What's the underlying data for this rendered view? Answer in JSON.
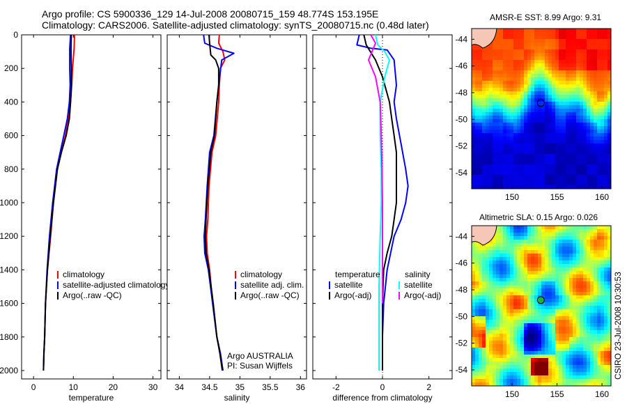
{
  "title": {
    "line1": "Argo profile: CS 5900336_129 14-Jul-2008 20080715_159 48.774S 153.195E",
    "line2": "Climatology: CARS2006. Satellite-adjusted climatology: synTS_20080715.nc (0.48d later)"
  },
  "credit": "CSIRO 23-Jul-2008 10:30:53",
  "colors": {
    "climatology": "#ff0000",
    "satellite": "#0000ff",
    "argo": "#000000",
    "sat_sal": "#00ffff",
    "argo_sal": "#ff00ff"
  },
  "chart_data": [
    {
      "type": "line",
      "xlabel": "temperature",
      "xticks": [
        "0",
        "10",
        "20",
        "30"
      ],
      "xlim": [
        -3,
        32
      ],
      "ylim": [
        2050,
        0
      ],
      "yticks": [
        "0",
        "200",
        "400",
        "600",
        "800",
        "1000",
        "1200",
        "1400",
        "1600",
        "1800",
        "2000"
      ],
      "legend": [
        "climatology",
        "satellite-adjusted climatology",
        "Argo(..raw -QC)"
      ],
      "series": [
        {
          "name": "climatology",
          "color": "#ff0000",
          "x": [
            10.3,
            10.2,
            9.8,
            9.6,
            9.3,
            8.8,
            8.0,
            7.0,
            6.0,
            5.0,
            4.3,
            3.5,
            3.0,
            2.8,
            2.6,
            2.5
          ],
          "y": [
            0,
            80,
            200,
            300,
            400,
            500,
            600,
            700,
            800,
            1000,
            1200,
            1400,
            1600,
            1800,
            1900,
            2000
          ]
        },
        {
          "name": "satellite-adjusted climatology",
          "color": "#0000ff",
          "x": [
            9.3,
            9.1,
            9.1,
            9.2,
            9.0,
            8.5,
            7.6,
            6.7,
            5.8,
            4.8,
            4.0,
            3.4,
            3.0,
            2.8,
            2.6,
            2.5
          ],
          "y": [
            0,
            80,
            200,
            300,
            400,
            500,
            600,
            700,
            800,
            1000,
            1200,
            1400,
            1600,
            1800,
            1900,
            2000
          ]
        },
        {
          "name": "Argo(..raw -QC)",
          "color": "#000000",
          "x": [
            9.5,
            9.4,
            9.5,
            9.5,
            9.3,
            9.0,
            8.2,
            7.0,
            6.0,
            5.0,
            4.2,
            3.5,
            3.0,
            2.8,
            2.6,
            2.5
          ],
          "y": [
            0,
            80,
            200,
            300,
            400,
            500,
            600,
            700,
            800,
            1000,
            1200,
            1400,
            1600,
            1800,
            1900,
            2000
          ]
        }
      ]
    },
    {
      "type": "line",
      "xlabel": "salinity",
      "xticks": [
        "34",
        "34.5",
        "35",
        "35.5",
        "36"
      ],
      "xlim": [
        33.8,
        36.1
      ],
      "ylim": [
        2050,
        0
      ],
      "legend": [
        "climatology",
        "satellite adj. clim.",
        "Argo(..raw -QC)"
      ],
      "annotation": [
        "Argo AUSTRALIA",
        "PI: Susan Wijffels"
      ],
      "series": [
        {
          "name": "climatology",
          "color": "#ff0000",
          "x": [
            34.66,
            34.65,
            34.72,
            34.75,
            34.68,
            34.66,
            34.65,
            34.6,
            34.54,
            34.49,
            34.47,
            34.45,
            34.46,
            34.5,
            34.55,
            34.62,
            34.68,
            34.72
          ],
          "y": [
            0,
            50,
            100,
            150,
            200,
            300,
            400,
            600,
            700,
            900,
            1100,
            1200,
            1300,
            1400,
            1600,
            1800,
            1900,
            2000
          ]
        },
        {
          "name": "satellite adj. clim.",
          "color": "#0000ff",
          "x": [
            34.4,
            34.42,
            34.62,
            34.9,
            34.7,
            34.65,
            34.62,
            34.57,
            34.5,
            34.46,
            34.43,
            34.41,
            34.42,
            34.48,
            34.55,
            34.62,
            34.68,
            34.72
          ],
          "y": [
            0,
            50,
            80,
            110,
            150,
            300,
            400,
            600,
            700,
            900,
            1100,
            1200,
            1300,
            1400,
            1600,
            1800,
            1900,
            2000
          ]
        },
        {
          "name": "Argo(..raw -QC)",
          "color": "#000000",
          "x": [
            34.49,
            34.5,
            34.52,
            34.6,
            34.65,
            34.65,
            34.62,
            34.58,
            34.52,
            34.47,
            34.44,
            34.43,
            34.44,
            34.49,
            34.56,
            34.62,
            34.67,
            34.71
          ],
          "y": [
            0,
            50,
            120,
            150,
            200,
            300,
            400,
            600,
            700,
            900,
            1100,
            1200,
            1300,
            1400,
            1600,
            1800,
            1900,
            2000
          ]
        }
      ]
    },
    {
      "type": "line",
      "xlabel": "difference from climatology",
      "xticks": [
        "-2",
        "0",
        "2"
      ],
      "xlim": [
        -3,
        3
      ],
      "ylim": [
        2050,
        0
      ],
      "legend_headers": [
        "temperature",
        "salinity"
      ],
      "legend": [
        "satellite",
        "Argo(-adj)",
        "satellite",
        "Argo(-adj)"
      ],
      "series": [
        {
          "name": "satellite",
          "color": "#0000ff",
          "x": [
            -1.0,
            -1.1,
            -0.5,
            0.2,
            0.5,
            0.6,
            0.5,
            0.6,
            0.8,
            1.0,
            1.1,
            1.0,
            0.8,
            0.5,
            0.2,
            0.05,
            0.0,
            0.0,
            0.0
          ],
          "y": [
            0,
            60,
            80,
            90,
            150,
            300,
            400,
            500,
            650,
            800,
            900,
            1000,
            1100,
            1200,
            1400,
            1600,
            1800,
            1900,
            2000
          ]
        },
        {
          "name": "Argo(-adj)",
          "color": "#000000",
          "x": [
            -0.8,
            -0.7,
            -0.3,
            0.0,
            0.3,
            0.4,
            0.5,
            0.6,
            0.6,
            0.6,
            0.5,
            0.4,
            0.2,
            0.05,
            0.0,
            0.0,
            0.0
          ],
          "y": [
            0,
            60,
            150,
            250,
            400,
            500,
            600,
            700,
            800,
            1000,
            1100,
            1200,
            1300,
            1400,
            1600,
            1800,
            2000
          ]
        },
        {
          "name": "satellite",
          "color": "#00ffff",
          "x": [
            -0.3,
            -0.2,
            0.1,
            0.3,
            0.1,
            -0.1,
            -0.1,
            -0.05,
            -0.05,
            -0.1,
            -0.15,
            -0.15,
            -0.15
          ],
          "y": [
            0,
            60,
            100,
            150,
            250,
            400,
            600,
            800,
            1000,
            1200,
            1500,
            1800,
            2000
          ]
        },
        {
          "name": "Argo(-adj)",
          "color": "#ff00ff",
          "x": [
            -0.5,
            -0.3,
            -0.6,
            -0.3,
            -0.1,
            -0.05,
            -0.02,
            0.0,
            0.0,
            0.0
          ],
          "y": [
            0,
            50,
            150,
            250,
            400,
            600,
            800,
            1000,
            1300,
            1600
          ]
        }
      ]
    },
    {
      "type": "heatmap",
      "title": "AMSR-E SST: 8.99 Argo: 9.31",
      "xticks": [
        "150",
        "155",
        "160"
      ],
      "yticks": [
        "-44",
        "-46",
        "-48",
        "-50",
        "-52",
        "-54"
      ],
      "xlim": [
        145.5,
        161
      ],
      "ylim": [
        -55.2,
        -43.2
      ],
      "profile_location": {
        "lon": 153.195,
        "lat": -48.774
      }
    },
    {
      "type": "heatmap",
      "title": "Altimetric SLA: 0.15 Argo: 0.026",
      "xticks": [
        "150",
        "155",
        "160"
      ],
      "yticks": [
        "-44",
        "-46",
        "-48",
        "-50",
        "-52",
        "-54"
      ],
      "xlim": [
        145.5,
        161
      ],
      "ylim": [
        -55.2,
        -43.2
      ],
      "profile_location": {
        "lon": 153.195,
        "lat": -48.774
      }
    }
  ]
}
